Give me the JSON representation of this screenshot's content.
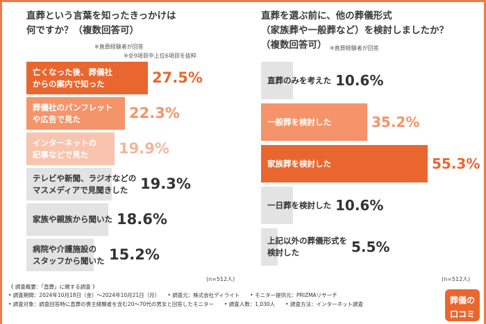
{
  "chart_data": [
    {
      "type": "bar",
      "title": "直葬という言葉を知ったきっかけは\n何ですか？（複数回答可）",
      "notes": [
        "※直葬経験者が回答",
        "※全9項目中上位6項目を抜粋"
      ],
      "categories": [
        "亡くなった後、葬儀社\nからの案内で知った",
        "葬儀社のパンフレット\nや広告で見た",
        "インターネットの\n記事などで見た",
        "テレビや新聞、ラジオなどの\nマスメディアで見聞きした",
        "家族や親族から聞いた",
        "病院や介護施設の\nスタッフから聞いた"
      ],
      "values": [
        27.5,
        22.3,
        19.9,
        19.3,
        18.6,
        15.2
      ],
      "unit": "%",
      "sample": "(n=512人)",
      "colors": [
        "#e9672f",
        "#f5946a",
        "#f8c4ae",
        "#e3e3e3",
        "#e3e3e3",
        "#e3e3e3"
      ],
      "value_colors": [
        "#e9672f",
        "#f5946a",
        "#f6b49a",
        "#333333",
        "#333333",
        "#333333"
      ],
      "label_colors": [
        "#ffffff",
        "#ffffff",
        "#ffffff",
        "#333333",
        "#333333",
        "#333333"
      ]
    },
    {
      "type": "bar",
      "title": "直葬を選ぶ前に、他の葬儀形式\n（家族葬や一般葬など）を検討しましたか？\n（複数回答可）",
      "notes": [
        "※直葬経験者が回答"
      ],
      "categories": [
        "直葬のみを考えた",
        "一般葬を検討した",
        "家族葬を検討した",
        "一日葬を検討した",
        "上記以外の葬儀形式を\n検討した"
      ],
      "values": [
        10.6,
        35.2,
        55.3,
        10.6,
        5.5
      ],
      "unit": "%",
      "sample": "(n=512人)",
      "colors": [
        "#e3e3e3",
        "#f5946a",
        "#e9672f",
        "#e3e3e3",
        "#e3e3e3"
      ],
      "value_colors": [
        "#333333",
        "#f5946a",
        "#e9672f",
        "#333333",
        "#333333"
      ],
      "label_colors": [
        "#333333",
        "#ffffff",
        "#ffffff",
        "#333333",
        "#333333"
      ]
    }
  ],
  "footer": {
    "heading": "《 調査概要：「直葬」に関する調査 》",
    "line1": "• 調査期間：2024年10月18日（金）～2024年10月21日（月）　　• 調査元：株式会社ディライト　　• モニター提供元：PRIZMAリサーチ",
    "line2": "• 調査対象：調査回答時に直葬の喪主経験者を含む20～70代の男女と回答したモニター　　• 調査人数：1,030人　　• 調査方法：インターネット調査"
  },
  "logo": {
    "line1": "葬儀の",
    "line2": "口コミ"
  }
}
